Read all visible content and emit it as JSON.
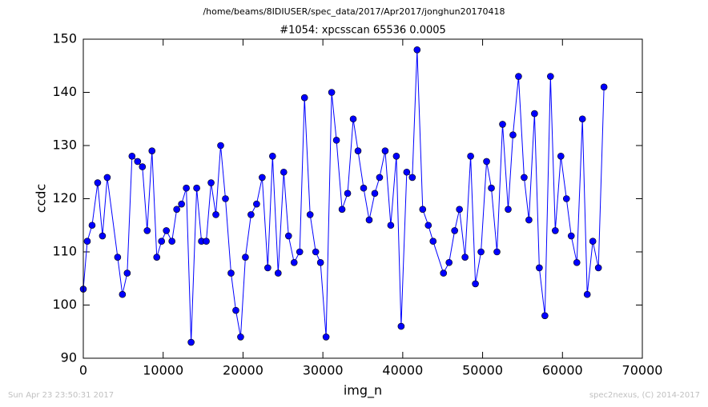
{
  "chart_data": {
    "type": "line",
    "suptitle": "/home/beams/8IDIUSER/spec_data/2017/Apr2017/jonghun20170418",
    "title": "#1054: xpcsscan 65536 0.0005",
    "x_label": "img_n",
    "y_label": "ccdc",
    "x": [
      0,
      500,
      1100,
      1800,
      2400,
      3000,
      4300,
      4900,
      5500,
      6100,
      6800,
      7400,
      8000,
      8600,
      9200,
      9800,
      10400,
      11100,
      11700,
      12300,
      12900,
      13500,
      14200,
      14800,
      15400,
      16000,
      16600,
      17200,
      17800,
      18500,
      19100,
      19700,
      20300,
      21000,
      21700,
      22400,
      23100,
      23700,
      24400,
      25100,
      25700,
      26400,
      27100,
      27700,
      28400,
      29100,
      29700,
      30400,
      31100,
      31700,
      32400,
      33100,
      33800,
      34400,
      35100,
      35800,
      36500,
      37100,
      37800,
      38500,
      39200,
      39800,
      40500,
      41200,
      41800,
      42500,
      43200,
      43800,
      45100,
      45800,
      46500,
      47100,
      47800,
      48500,
      49100,
      49800,
      50500,
      51100,
      51800,
      52500,
      53200,
      53800,
      54500,
      55200,
      55800,
      56500,
      57100,
      57800,
      58500,
      59100,
      59800,
      60500,
      61100,
      61800,
      62500,
      63100,
      63800,
      64500,
      65200
    ],
    "series": [
      {
        "color": "#0000ff",
        "marker_edge": "#000000",
        "values": [
          103,
          112,
          115,
          123,
          113,
          124,
          109,
          102,
          106,
          128,
          127,
          126,
          114,
          129,
          109,
          112,
          114,
          112,
          118,
          119,
          122,
          93,
          122,
          112,
          112,
          123,
          117,
          130,
          120,
          106,
          99,
          94,
          109,
          117,
          119,
          124,
          107,
          128,
          106,
          125,
          113,
          108,
          110,
          139,
          117,
          110,
          108,
          94,
          140,
          131,
          118,
          121,
          135,
          129,
          122,
          116,
          121,
          124,
          129,
          115,
          128,
          96,
          125,
          124,
          148,
          118,
          115,
          112,
          106,
          108,
          114,
          118,
          109,
          128,
          104,
          110,
          127,
          122,
          110,
          134,
          118,
          132,
          143,
          124,
          116,
          136,
          107,
          98,
          143,
          114,
          128,
          120,
          113,
          108,
          135,
          102,
          112,
          107,
          141
        ]
      }
    ],
    "xlim": [
      0,
      70000
    ],
    "ylim": [
      90,
      150
    ],
    "xticks": [
      0,
      10000,
      20000,
      30000,
      40000,
      50000,
      60000,
      70000
    ],
    "yticks": [
      90,
      100,
      110,
      120,
      130,
      140,
      150
    ]
  },
  "footer": {
    "left": "Sun Apr 23 23:50:31 2017",
    "right": "spec2nexus, (C) 2014-2017"
  }
}
